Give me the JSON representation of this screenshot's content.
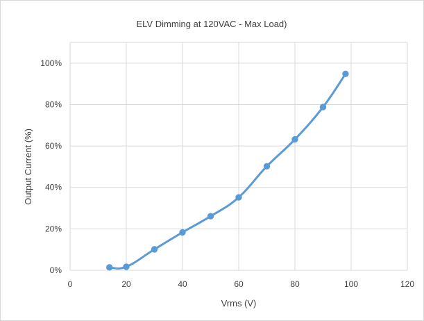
{
  "chart_data": {
    "type": "scatter",
    "title": "ELV Dimming at 120VAC - Max Load)",
    "xlabel": "Vrms (V)",
    "ylabel": "Output Current (%)",
    "xlim": [
      0,
      120
    ],
    "ylim": [
      0,
      1.1
    ],
    "x_ticks": [
      0,
      20,
      40,
      60,
      80,
      100,
      120
    ],
    "x_tick_labels": [
      "0",
      "20",
      "40",
      "60",
      "80",
      "100",
      "120"
    ],
    "y_ticks": [
      0,
      0.2,
      0.4,
      0.6,
      0.8,
      1.0
    ],
    "y_tick_labels": [
      "0%",
      "20%",
      "40%",
      "60%",
      "80%",
      "100%"
    ],
    "grid": true,
    "legend": "none",
    "line_style": "smooth line with markers",
    "series": [
      {
        "color": "#5b9bd5",
        "x": [
          14,
          20,
          30,
          40,
          50,
          60,
          70,
          80,
          90,
          98
        ],
        "y": [
          0.014,
          0.017,
          0.101,
          0.183,
          0.261,
          0.352,
          0.502,
          0.632,
          0.788,
          0.948
        ]
      }
    ]
  }
}
